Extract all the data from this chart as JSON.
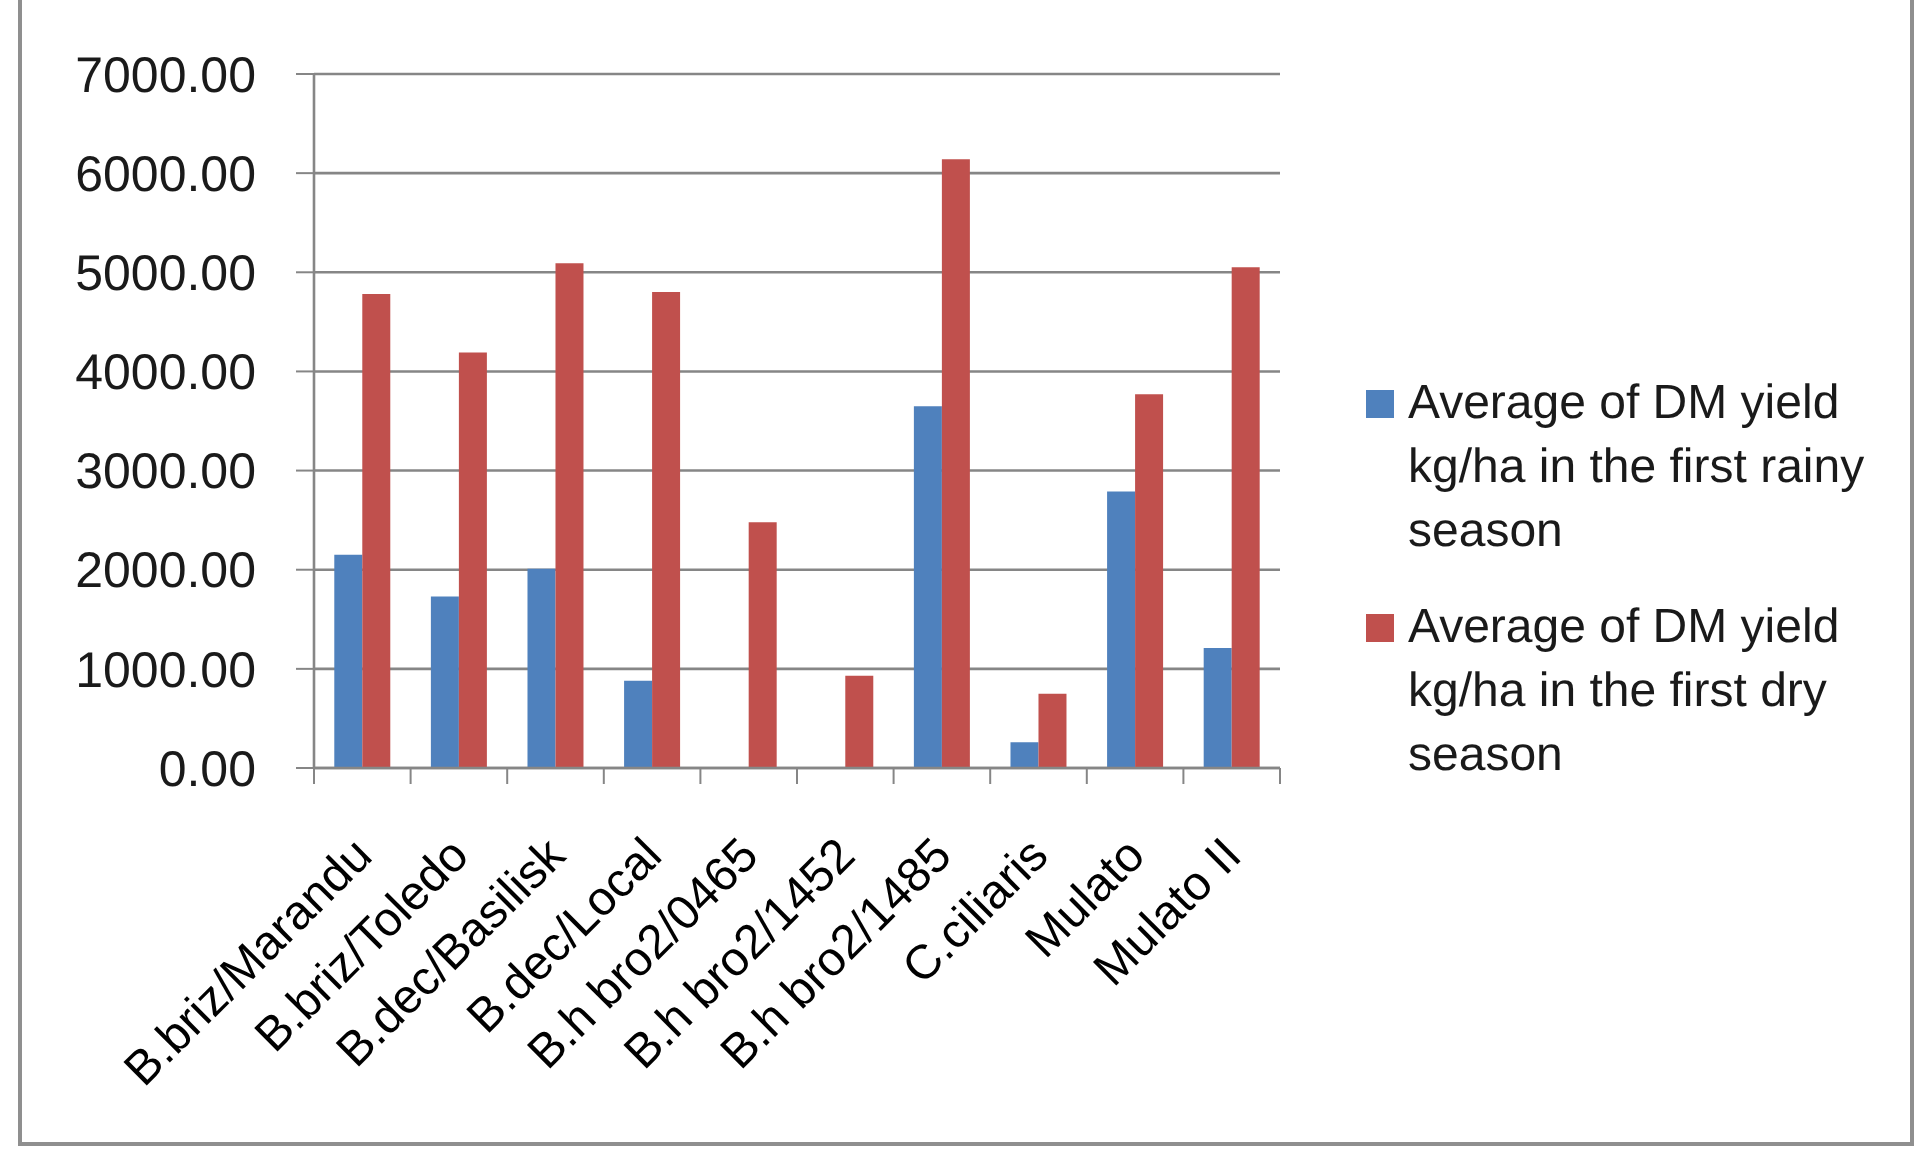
{
  "chart_data": {
    "type": "bar",
    "categories": [
      "B.briz/Marandu",
      "B.briz/Toledo",
      "B.dec/Basilisk",
      "B.dec/Local",
      "B.h bro2/0465",
      "B.h bro2/1452",
      "B.h bro2/1485",
      "C.ciliaris",
      "Mulato",
      "Mulato II"
    ],
    "series": [
      {
        "name": "Average of DM yield kg/ha in the first rainy season",
        "color": "#4f81bd",
        "values": [
          2150,
          1730,
          2010,
          880,
          null,
          null,
          3650,
          260,
          2790,
          1210
        ]
      },
      {
        "name": "Average of DM yield kg/ha in the first dry season",
        "color": "#c0504d",
        "values": [
          4780,
          4190,
          5090,
          4800,
          2480,
          930,
          6140,
          750,
          3770,
          5050
        ]
      }
    ],
    "ylim": [
      0,
      7000
    ],
    "yticks": [
      {
        "value": 0,
        "label": "0.00"
      },
      {
        "value": 1000,
        "label": "1000.00"
      },
      {
        "value": 2000,
        "label": "2000.00"
      },
      {
        "value": 3000,
        "label": "3000.00"
      },
      {
        "value": 4000,
        "label": "4000.00"
      },
      {
        "value": 5000,
        "label": "5000.00"
      },
      {
        "value": 6000,
        "label": "6000.00"
      },
      {
        "value": 7000,
        "label": "7000.00"
      }
    ],
    "grid": "y",
    "legend": "right"
  }
}
